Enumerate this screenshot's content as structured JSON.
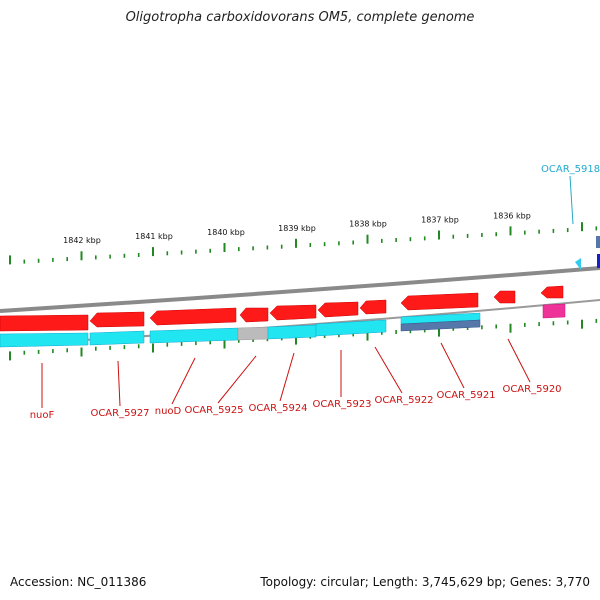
{
  "title": "Oligotropha carboxidovorans OM5, complete genome",
  "footer": {
    "accession": "Accession: NC_011386",
    "topology": "Topology: circular; Length: 3,745,629 bp; Genes: 3,770"
  },
  "kbp_labels": [
    "1842 kbp",
    "1841 kbp",
    "1840 kbp",
    "1839 kbp",
    "1838 kbp",
    "1837 kbp",
    "1836 kbp"
  ],
  "gene_labels_bottom": [
    "nuoF",
    "OCAR_5927",
    "nuoD",
    "OCAR_5925",
    "OCAR_5924",
    "OCAR_5923",
    "OCAR_5922",
    "OCAR_5921",
    "OCAR_5920"
  ],
  "gene_label_top": "OCAR_5918",
  "colors": {
    "cds": "#ff1a1a",
    "gene": "#22e5f2",
    "pseudo": "#bbbbbb",
    "rna": "#ee3399",
    "misc": "#5577aa",
    "backbone": "#888888",
    "tick": "#228822",
    "label_red": "#cc1111",
    "label_cyan": "#22aacc"
  }
}
